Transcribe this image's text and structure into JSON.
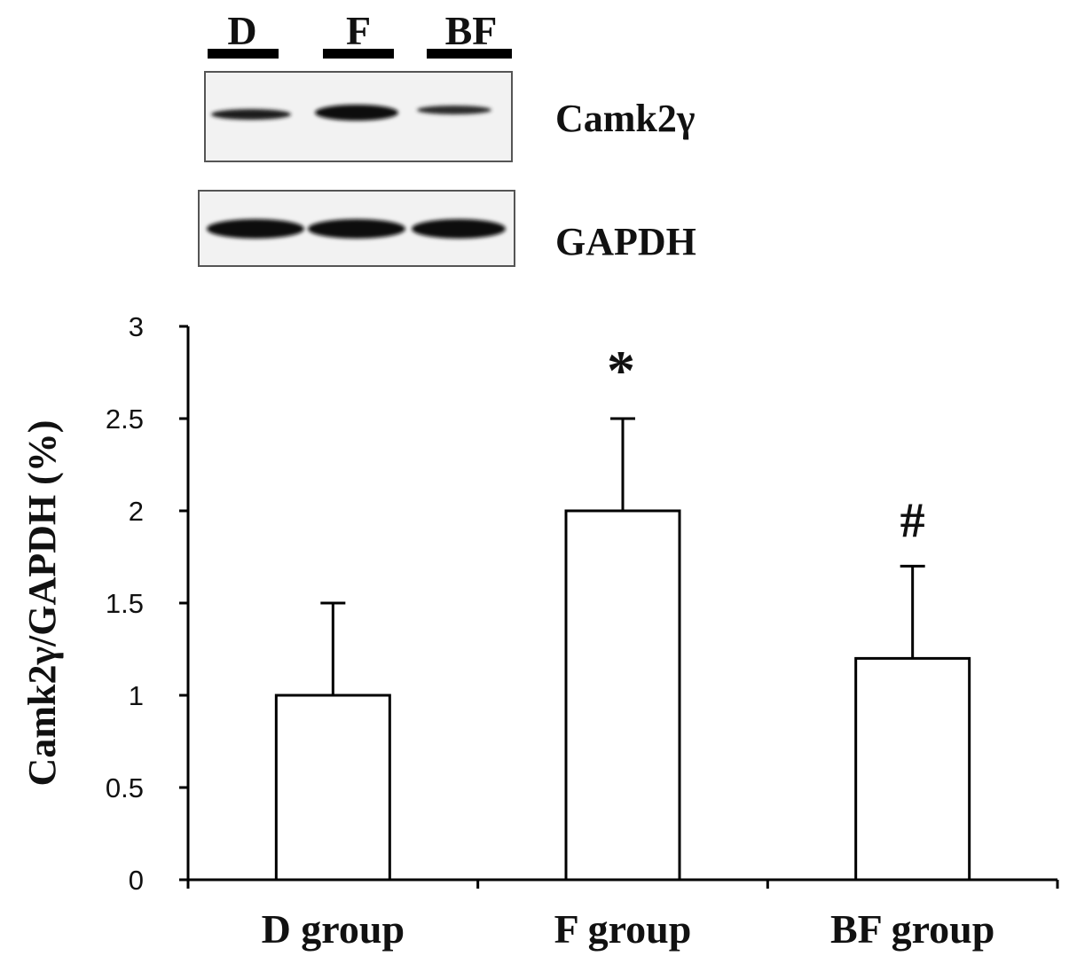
{
  "blot": {
    "lanes": [
      "D",
      "F",
      "BF"
    ],
    "rows": [
      {
        "protein": "Camk2γ",
        "intensity": [
          0.75,
          1.0,
          0.6
        ]
      },
      {
        "protein": "GAPDH",
        "intensity": [
          1.0,
          1.0,
          1.0
        ]
      }
    ]
  },
  "chart_data": {
    "type": "bar",
    "categories": [
      "D group",
      "F group",
      "BF group"
    ],
    "values": [
      1.0,
      2.0,
      1.2
    ],
    "error_upper": [
      0.5,
      0.5,
      0.5
    ],
    "significance": [
      "",
      "*",
      "#"
    ],
    "ylabel": "Camk2γ/GAPDH (%)",
    "xlabel": "",
    "ylim": [
      0,
      3
    ],
    "yticks": [
      0,
      0.5,
      1,
      1.5,
      2,
      2.5,
      3
    ],
    "ytick_labels": [
      "0",
      "0.5",
      "1",
      "1.5",
      "2",
      "2.5",
      "3"
    ],
    "grid": false,
    "bar_fill": "#ffffff",
    "bar_stroke": "#000000"
  }
}
